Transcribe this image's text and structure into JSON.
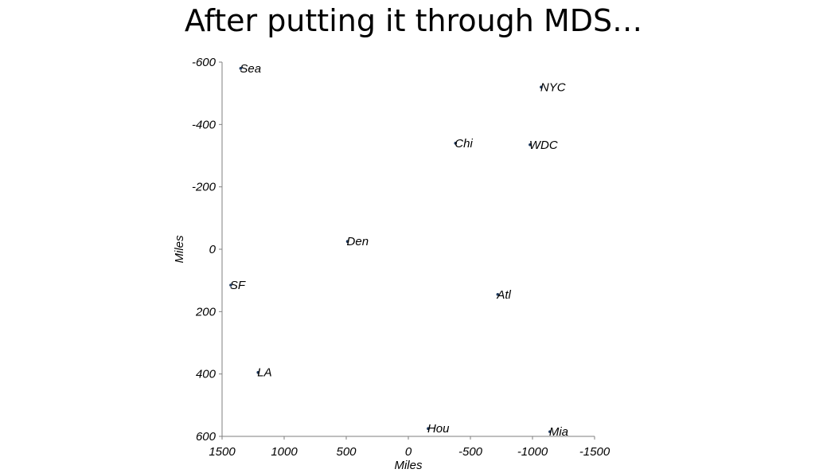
{
  "slide": {
    "title": "After putting it through MDS…"
  },
  "chart_data": {
    "type": "scatter",
    "title": "After putting it through MDS…",
    "xlabel": "Miles",
    "ylabel": "Miles",
    "x_reversed": true,
    "y_reversed": true,
    "xlim": [
      1500,
      -1500
    ],
    "ylim": [
      -600,
      600
    ],
    "x_ticks": [
      1500,
      1000,
      500,
      0,
      -500,
      -1000,
      -1500
    ],
    "x_tick_labels": [
      "1500",
      "1000",
      "500",
      "0",
      "-500",
      "-1000",
      "-1500"
    ],
    "y_ticks": [
      -600,
      -400,
      -200,
      0,
      200,
      400,
      600
    ],
    "y_tick_labels": [
      "-600",
      "-400",
      "-200",
      "0",
      "200",
      "400",
      "600"
    ],
    "grid": false,
    "marker_color": "#1f3a5f",
    "points": [
      {
        "label": "Sea",
        "x": 1350,
        "y": -580
      },
      {
        "label": "NYC",
        "x": -1070,
        "y": -520
      },
      {
        "label": "Chi",
        "x": -380,
        "y": -340
      },
      {
        "label": "WDC",
        "x": -980,
        "y": -335
      },
      {
        "label": "Den",
        "x": 490,
        "y": -25
      },
      {
        "label": "SF",
        "x": 1430,
        "y": 115
      },
      {
        "label": "Atl",
        "x": -720,
        "y": 145
      },
      {
        "label": "LA",
        "x": 1210,
        "y": 395
      },
      {
        "label": "Hou",
        "x": -160,
        "y": 575
      },
      {
        "label": "Mia",
        "x": -1140,
        "y": 585
      }
    ]
  }
}
